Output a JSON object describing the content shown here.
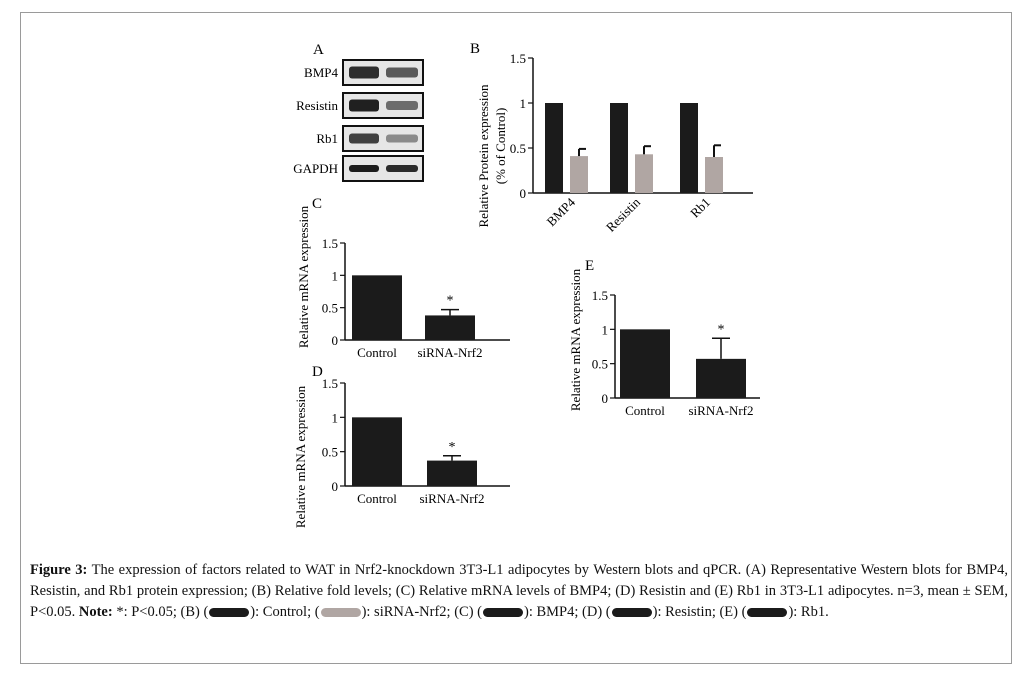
{
  "chart_data": [
    {
      "panel": "A",
      "type": "other",
      "label": "A",
      "rows": [
        "BMP4",
        "Resistin",
        "Rb1",
        "GAPDH"
      ]
    },
    {
      "panel": "B",
      "type": "bar",
      "label": "B",
      "categories": [
        "BMP4",
        "Resistin",
        "Rb1"
      ],
      "series": [
        {
          "name": "Control",
          "values": [
            1,
            1,
            1
          ],
          "errors": [
            0,
            0,
            0
          ],
          "color": "#1b1b1b"
        },
        {
          "name": "siRNA-Nrf2",
          "values": [
            0.41,
            0.43,
            0.4
          ],
          "errors": [
            0.08,
            0.09,
            0.13
          ],
          "color": "#b0a6a3"
        }
      ],
      "ylabel_line1": "Relative Protein expression",
      "ylabel_line2": "(% of Control)",
      "ylim": [
        0,
        1.5
      ],
      "yticks": [
        "0",
        "0.5",
        "1",
        "1.5"
      ]
    },
    {
      "panel": "C",
      "type": "bar",
      "label": "C",
      "categories": [
        "Control",
        "siRNA-Nrf2"
      ],
      "values": [
        1,
        0.38
      ],
      "errors": [
        0,
        0.09
      ],
      "significance": [
        "",
        "*"
      ],
      "ylabel": "Relative mRNA expression",
      "ylim": [
        0,
        1.5
      ],
      "yticks": [
        "0",
        "0.5",
        "1",
        "1.5"
      ]
    },
    {
      "panel": "D",
      "type": "bar",
      "label": "D",
      "categories": [
        "Control",
        "siRNA-Nrf2"
      ],
      "values": [
        1,
        0.37
      ],
      "errors": [
        0,
        0.07
      ],
      "significance": [
        "",
        "*"
      ],
      "ylabel": "Relative mRNA expression",
      "ylim": [
        0,
        1.5
      ],
      "yticks": [
        "0",
        "0.5",
        "1",
        "1.5"
      ]
    },
    {
      "panel": "E",
      "type": "bar",
      "label": "E",
      "categories": [
        "Control",
        "siRNA-Nrf2"
      ],
      "values": [
        1,
        0.57
      ],
      "errors": [
        0,
        0.3
      ],
      "significance": [
        "",
        "*"
      ],
      "ylabel": "Relative mRNA expression",
      "ylim": [
        0,
        1.5
      ],
      "yticks": [
        "0",
        "0.5",
        "1",
        "1.5"
      ]
    }
  ],
  "caption": {
    "figure_label": "Figure 3:",
    "text1": " The expression of factors related to WAT in Nrf2-knockdown 3T3-L1 adipocytes by Western blots and qPCR. (A) Representative Western blots for BMP4, Resistin, and Rb1 protein expression; (B) Relative fold levels; (C) Relative mRNA levels of BMP4; (D) Resistin and (E) Rb1 in 3T3-L1 adipocytes. n=3, mean ± SEM, P<0.05. ",
    "note_label": "Note:",
    "text2": " *: P<0.05; (B) (",
    "text3": "): Control; (",
    "text4": "): siRNA-Nrf2; (C) (",
    "text5": "): BMP4; (D) (",
    "text6": "): Resistin; (E) (",
    "text7": "): Rb1."
  },
  "colors": {
    "control": "#1b1b1b",
    "sirna": "#b0a6a3"
  }
}
